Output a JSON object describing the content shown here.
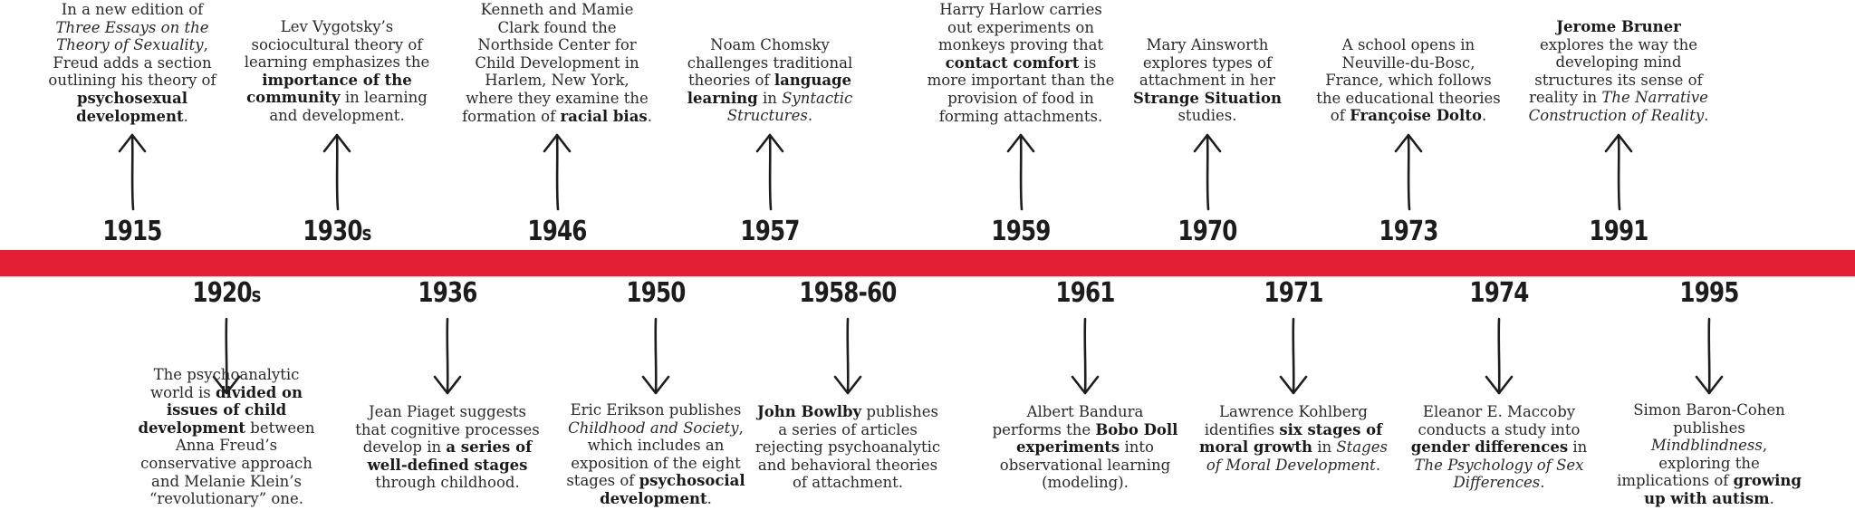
{
  "top_events": [
    {
      "year": "1915",
      "text_html": "In a new edition of <i>Three Essays on the Theory of Sexuality</i>, Freud adds a section outlining his theory of <b>psychosexual development</b>."
    },
    {
      "year": "1930s",
      "text_html": "Lev Vygotsky’s sociocultural theory of learning emphasizes the <b>importance of the community</b> in learning and development."
    },
    {
      "year": "1946",
      "text_html": "Kenneth and Mamie Clark found the Northside Center for Child Development in Harlem, New York, where they examine the formation of <b>racial bias</b>."
    },
    {
      "year": "1957",
      "text_html": "Noam Chomsky challenges traditional theories of <b>language learning</b> in <i>Syntactic Structures</i>."
    },
    {
      "year": "1959",
      "text_html": "Harry Harlow carries out experiments on monkeys proving that <b>contact comfort</b> is more important than the provision of food in forming attachments."
    },
    {
      "year": "1970",
      "text_html": "Mary Ainsworth explores types of attachment in her <b>Strange Situation</b> studies."
    },
    {
      "year": "1973",
      "text_html": "A school opens in Neuville-du-Bosc, France, which follows the educational theories of <b>Françoise Dolto</b>."
    },
    {
      "year": "1991",
      "text_html": "<b>Jerome Bruner</b> explores the way the developing mind structures its sense of reality in <i>The Narrative Construction of Reality</i>."
    }
  ],
  "bottom_events": [
    {
      "year": "1920s",
      "text_html": "The psychoanalytic world is <b>divided on issues of child development</b> between Anna Freud’s conservative approach and Melanie Klein’s “revolutionary” one."
    },
    {
      "year": "1936",
      "text_html": "Jean Piaget suggests that cognitive processes develop in <b>a series of well-defined stages</b> through childhood."
    },
    {
      "year": "1950",
      "text_html": "Eric Erikson publishes <i>Childhood and Society</i>, which includes an exposition of the eight stages of <b>psychosocial development</b>."
    },
    {
      "year": "1958-60",
      "text_html": "<b>John Bowlby</b> publishes a series of articles rejecting psychoanalytic and behavioral theories of attachment."
    },
    {
      "year": "1961",
      "text_html": "Albert Bandura performs the <b>Bobo Doll experiments</b> into observational learning (modeling)."
    },
    {
      "year": "1971",
      "text_html": "Lawrence Kohlberg identifies <b>six stages of moral growth</b> in <i>Stages of Moral Development</i>."
    },
    {
      "year": "1974",
      "text_html": "Eleanor E. Maccoby conducts a study into <b>gender differences</b> in <i>The Psychology of Sex Differences</i>."
    },
    {
      "year": "1995",
      "text_html": "Simon Baron-Cohen publishes <i>Mindblindness</i>, exploring the implications of <b>growing up with autism</b>."
    }
  ],
  "colors": {
    "timeline_bar": "#e31e35",
    "text": "#2a2a2a"
  }
}
